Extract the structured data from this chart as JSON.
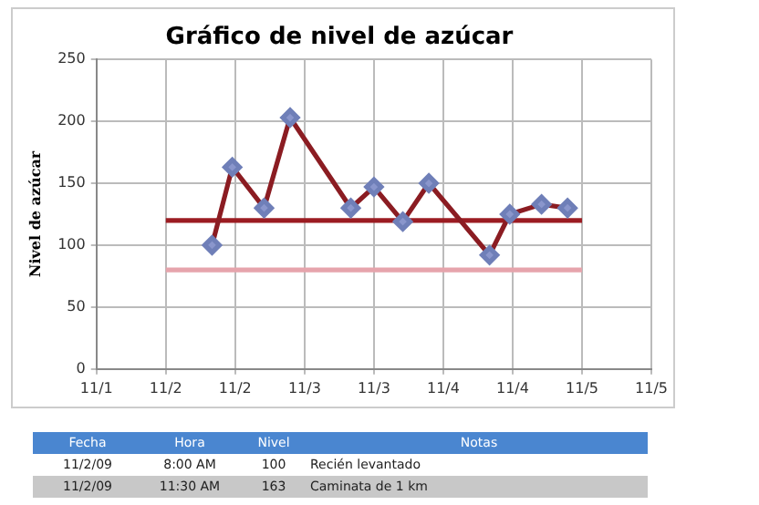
{
  "chart_data": {
    "type": "line",
    "title": "Gráfico de nivel de azúcar",
    "ylabel": "Nivel de azúcar",
    "series": [
      {
        "color": "#8b1c22",
        "marker": "diamond",
        "x": [
          "--11-02T08:00",
          "--11-02T11:30",
          "--11-02T17:00",
          "--11-02T21:30",
          "--11-03T08:00",
          "--11-03T12:00",
          "--11-03T17:00",
          "--11-03T21:30",
          "--11-04T08:00",
          "--11-04T11:30",
          "--11-04T17:00",
          "--11-04T21:30"
        ],
        "values": [
          100,
          163,
          130,
          203,
          130,
          147,
          119,
          150,
          92,
          125,
          133,
          130
        ]
      },
      {
        "color": "#9b1c22",
        "marker": "none",
        "x": [
          "--11-02T00:00",
          "--11-05T00:00"
        ],
        "values": [
          120,
          120
        ]
      },
      {
        "color": "#e6a4ac",
        "marker": "none",
        "x": [
          "--11-02T00:00",
          "--11-05T00:00"
        ],
        "values": [
          80,
          80
        ]
      }
    ],
    "xlim": [
      "--11-01T12:00",
      "--11-05T12:00"
    ],
    "xticks": [
      {
        "value": "--11-01T12:00",
        "label": "11/1"
      },
      {
        "value": "--11-02T00:00",
        "label": "11/2"
      },
      {
        "value": "--11-02T12:00",
        "label": "11/2"
      },
      {
        "value": "--11-03T00:00",
        "label": "11/3"
      },
      {
        "value": "--11-03T12:00",
        "label": "11/3"
      },
      {
        "value": "--11-04T00:00",
        "label": "11/4"
      },
      {
        "value": "--11-04T12:00",
        "label": "11/4"
      },
      {
        "value": "--11-05T00:00",
        "label": "11/5"
      },
      {
        "value": "--11-05T12:00",
        "label": "11/5"
      }
    ],
    "ylim": [
      0,
      250
    ],
    "yticks": [
      0,
      50,
      100,
      150,
      200,
      250
    ],
    "grid": true,
    "legend": false,
    "line_style": "solid",
    "annotations": [
      "Fecha",
      "Hora",
      "Nivel",
      "Notas",
      "11/2/09",
      "8:00 AM",
      "100",
      "Recién levantado",
      "11/2/09",
      "11:30 AM",
      "163",
      "Caminata de 1 km"
    ]
  }
}
